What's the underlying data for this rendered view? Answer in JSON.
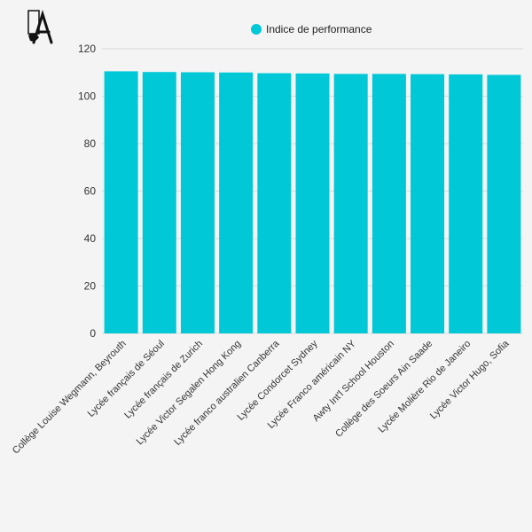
{
  "colors": {
    "bar": "#00c8d7",
    "grid": "#d9d9d9",
    "background": "#f4f4f4"
  },
  "logo": {
    "icon": "pen-nib-logo-icon"
  },
  "chart_data": {
    "type": "bar",
    "categories": [
      "Collège Louise Wegmann, Beyrouth",
      "Lycée français de Séoul",
      "Lycée français de Zurich",
      "Lycée Victor Segalen Hong Kong",
      "Lycée franco australien Canberra",
      "Lycée Condorcet Sydney",
      "Lycée Franco américain NY",
      "Awty Int'l School Houston",
      "Collège des Soeurs Ain Saade",
      "Lycée Molière Rio de Janeiro",
      "Lycée Victor Hugo, Sofia"
    ],
    "series": [
      {
        "name": "Indice de performance",
        "values": [
          110.5,
          110.2,
          110.1,
          110.0,
          109.7,
          109.6,
          109.4,
          109.4,
          109.3,
          109.2,
          109.0
        ]
      }
    ],
    "ylim": [
      0,
      120
    ],
    "yticks": [
      0,
      20,
      40,
      60,
      80,
      100,
      120
    ],
    "grid": true,
    "legend_position": "top-center"
  }
}
